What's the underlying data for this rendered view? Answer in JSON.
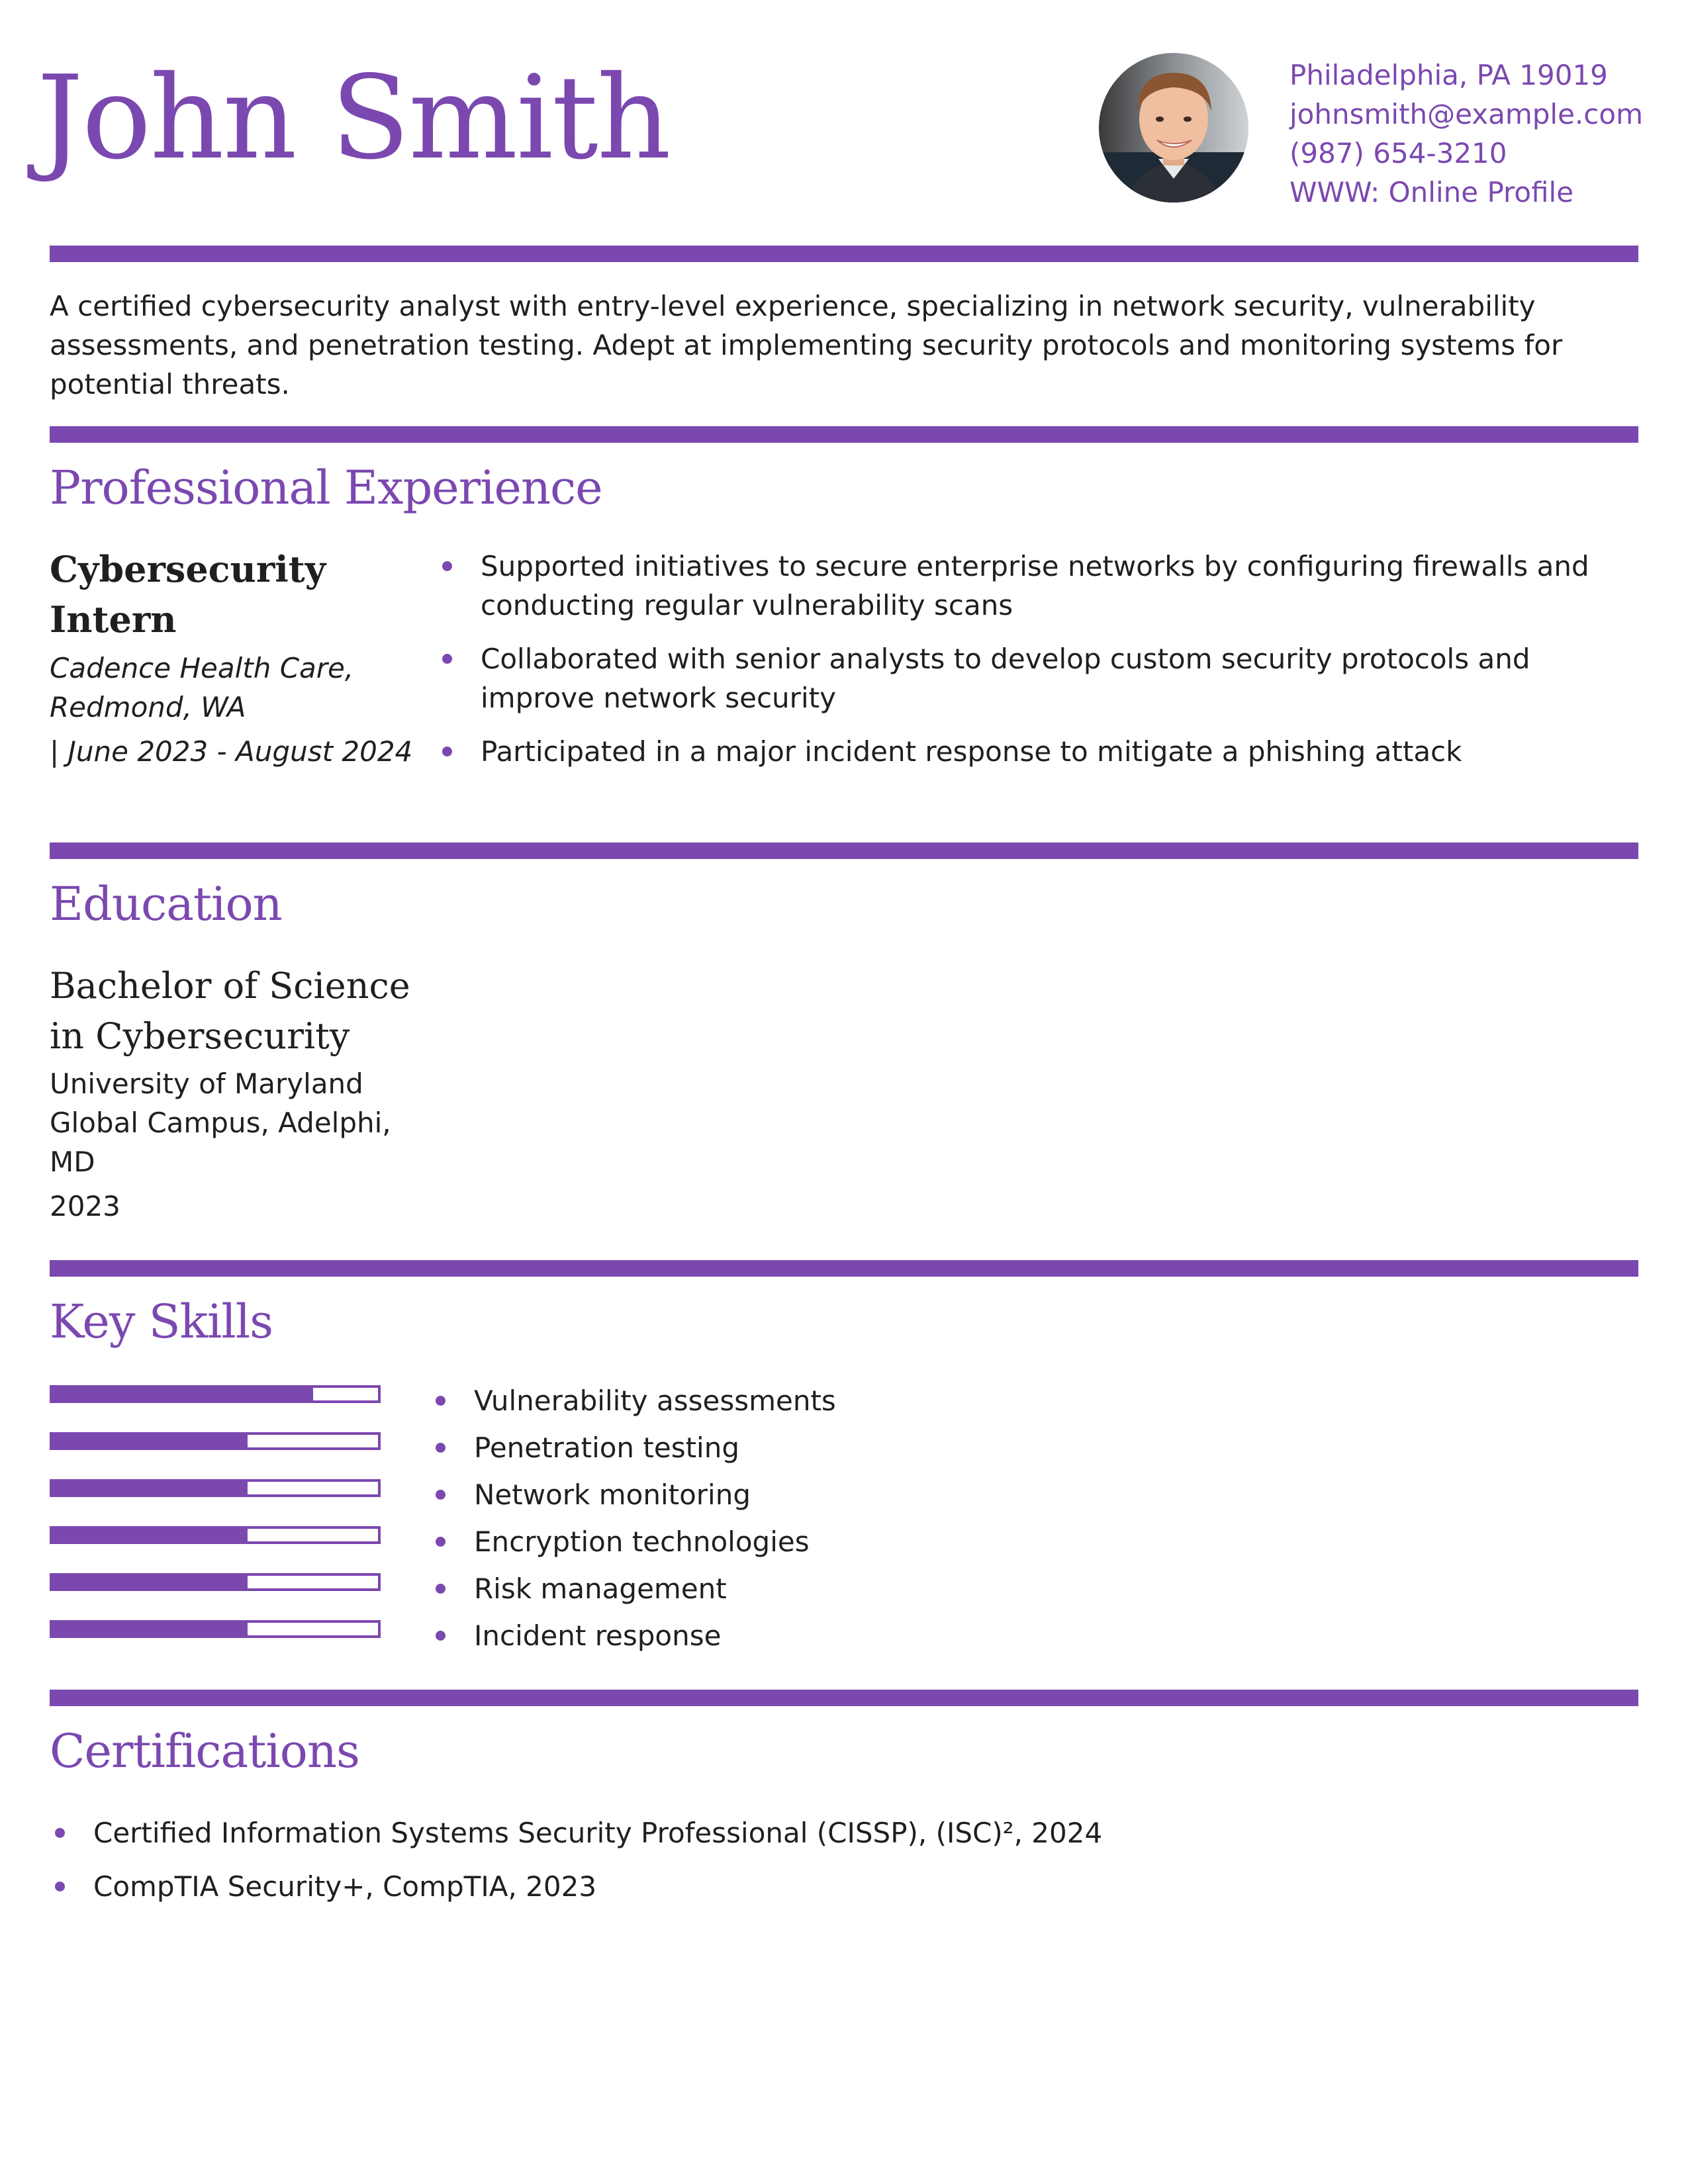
{
  "header": {
    "name": "John Smith",
    "contact": {
      "location": "Philadelphia, PA 19019",
      "email": "johnsmith@example.com",
      "phone": "(987) 654-3210",
      "website": "WWW: Online Profile"
    }
  },
  "summary": "A certified cybersecurity analyst with entry-level experience, specializing in network security, vulnerability assessments, and penetration testing. Adept at implementing security protocols and monitoring systems for potential threats.",
  "experience": {
    "title": "Professional Experience",
    "jobs": [
      {
        "role": "Cybersecurity Intern",
        "company": "Cadence Health Care",
        "location": "Redmond, WA",
        "dates": "| June 2023 - August 2024",
        "bullets": [
          "Supported initiatives to secure enterprise networks by configuring firewalls and conducting regular vulnerability scans",
          "Collaborated with senior analysts to develop custom security protocols and improve network security",
          "Participated in a major incident response to mitigate a phishing attack"
        ]
      }
    ]
  },
  "education": {
    "title": "Education",
    "degree": "Bachelor of Science in Cybersecurity",
    "school": "University of Maryland Global Campus, Adelphi, MD",
    "year": "2023"
  },
  "skills": {
    "title": "Key Skills",
    "items": [
      {
        "name": "Vulnerability assessments",
        "level": 0.8
      },
      {
        "name": "Penetration testing",
        "level": 0.6
      },
      {
        "name": "Network monitoring",
        "level": 0.6
      },
      {
        "name": "Encryption technologies",
        "level": 0.6
      },
      {
        "name": "Risk management",
        "level": 0.6
      },
      {
        "name": "Incident response",
        "level": 0.6
      }
    ]
  },
  "certifications": {
    "title": "Certifications",
    "items": [
      "Certified Information Systems Security Professional (CISSP), (ISC)², 2024",
      "CompTIA Security+, CompTIA, 2023"
    ]
  },
  "colors": {
    "accent": "#7b48b0",
    "text": "#1f1f1f"
  }
}
